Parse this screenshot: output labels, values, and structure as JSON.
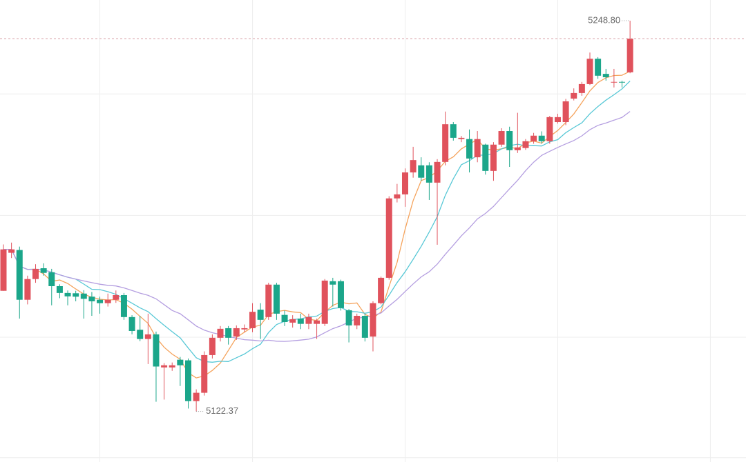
{
  "chart_data": {
    "type": "candlestick",
    "open": [
      5161.4,
      5173.7,
      5174.6,
      5158.5,
      5165.2,
      5168.7,
      5167.4,
      5162.9,
      5160.7,
      5160.6,
      5160.5,
      5159.5,
      5158.5,
      5157.4,
      5158.5,
      5160,
      5152.9,
      5148.8,
      5145.8,
      5147.3,
      5136.6,
      5136.6,
      5139.1,
      5138.9,
      5125.7,
      5128.4,
      5140.6,
      5146.2,
      5149.3,
      5146.6,
      5148.9,
      5149.3,
      5155.3,
      5152.9,
      5163.4,
      5153.6,
      5151.1,
      5152.4,
      5150.7,
      5150.7,
      5150.7,
      5164.5,
      5164.5,
      5155.1,
      5150.2,
      5153.3,
      5146.6,
      5157.4,
      5165.6,
      5191.3,
      5192.6,
      5199.7,
      5202,
      5202,
      5196.4,
      5203.1,
      5215.3,
      5210.5,
      5210.5,
      5204.6,
      5208.7,
      5200.2,
      5208.7,
      5213.1,
      5206.9,
      5207.6,
      5209.8,
      5211.6,
      5209.8,
      5216,
      5216,
      5223.6,
      5225.4,
      5228.3,
      5236.5,
      5231.6,
      5228.8,
      5229,
      5232.1
    ],
    "high": [
      5176.4,
      5177,
      5175.7,
      5166.3,
      5170,
      5170.3,
      5168.5,
      5163.5,
      5161.5,
      5161.4,
      5161.6,
      5161,
      5159.5,
      5160.5,
      5161.5,
      5160.7,
      5153.5,
      5153.3,
      5154,
      5148.2,
      5138,
      5138.2,
      5140,
      5139.5,
      5129.5,
      5141.8,
      5147.3,
      5150,
      5150,
      5150.2,
      5150.5,
      5157.4,
      5157.4,
      5164,
      5164,
      5155,
      5153.5,
      5154,
      5154,
      5152.4,
      5165.2,
      5165.6,
      5165,
      5155.5,
      5154,
      5154,
      5158,
      5166,
      5192,
      5196,
      5201,
      5208,
      5204.6,
      5203,
      5204,
      5219.4,
      5216,
      5211.5,
      5213.6,
      5213.1,
      5209,
      5209.5,
      5214,
      5214.5,
      5219,
      5210.5,
      5212.5,
      5213,
      5218,
      5218.7,
      5223.5,
      5226.9,
      5229,
      5238.5,
      5237,
      5233.2,
      5233.2,
      5229.4,
      5248.8
    ],
    "low": [
      5161.4,
      5172,
      5152.4,
      5157,
      5164,
      5166.3,
      5156.7,
      5159,
      5156.7,
      5158,
      5152.4,
      5153.3,
      5154,
      5156.3,
      5157.5,
      5152,
      5147.3,
      5145.1,
      5137.7,
      5125.5,
      5126.2,
      5135.5,
      5130.6,
      5123.3,
      5122.37,
      5127.5,
      5139.5,
      5145,
      5144,
      5145.5,
      5148,
      5148,
      5145.8,
      5152,
      5152,
      5150,
      5149.5,
      5149,
      5149,
      5145.8,
      5150,
      5156.3,
      5155,
      5144.7,
      5149,
      5145,
      5141.8,
      5157,
      5165,
      5190,
      5188.6,
      5198,
      5197,
      5190.8,
      5176.3,
      5202,
      5210,
      5209.5,
      5199.7,
      5203,
      5199,
      5197,
      5208,
      5201.5,
      5206,
      5207,
      5209,
      5209,
      5209,
      5215.5,
      5215,
      5223,
      5224.5,
      5228,
      5230,
      5229.4,
      5227.2,
      5227.2,
      5231.8
    ],
    "close": [
      5174.8,
      5174.8,
      5158.5,
      5165.2,
      5168.5,
      5167.2,
      5162.9,
      5160.7,
      5159.6,
      5159.5,
      5158.8,
      5158,
      5157.4,
      5158.5,
      5160,
      5152.9,
      5148.4,
      5145.8,
      5147.3,
      5136.9,
      5137.3,
      5137.3,
      5137.3,
      5125.7,
      5128.4,
      5140.6,
      5146.2,
      5149.1,
      5146.2,
      5149.3,
      5149.3,
      5154.6,
      5152,
      5163.4,
      5154,
      5151.3,
      5152.2,
      5150.7,
      5152.9,
      5151.8,
      5164.7,
      5163.4,
      5155.8,
      5150.2,
      5153.3,
      5146.2,
      5157.4,
      5165.6,
      5191.3,
      5192.6,
      5199.7,
      5203.7,
      5198,
      5196.4,
      5203.1,
      5215.3,
      5210.9,
      5210.9,
      5204.2,
      5210.5,
      5200.2,
      5208.7,
      5213.1,
      5206.9,
      5207.8,
      5209.8,
      5211.6,
      5209.8,
      5217.6,
      5217.6,
      5222.7,
      5225.4,
      5228.3,
      5236.5,
      5231,
      5230.5,
      5229,
      5228.8,
      5243
    ],
    "up_color": "#e0525c",
    "down_color": "#1ba68a",
    "ma_periods": [
      5,
      10,
      20
    ],
    "ma_colors": [
      "#f5a35c",
      "#58c8d6",
      "#b49ee0"
    ],
    "max_label": "5248.80",
    "min_label": "5122.37",
    "ylim": [
      5106,
      5255.5
    ],
    "yticks": [
      5107.4,
      5146.4,
      5185.8,
      5225.1
    ],
    "xticks": [
      12,
      31,
      50,
      69,
      88
    ],
    "grid": true
  }
}
